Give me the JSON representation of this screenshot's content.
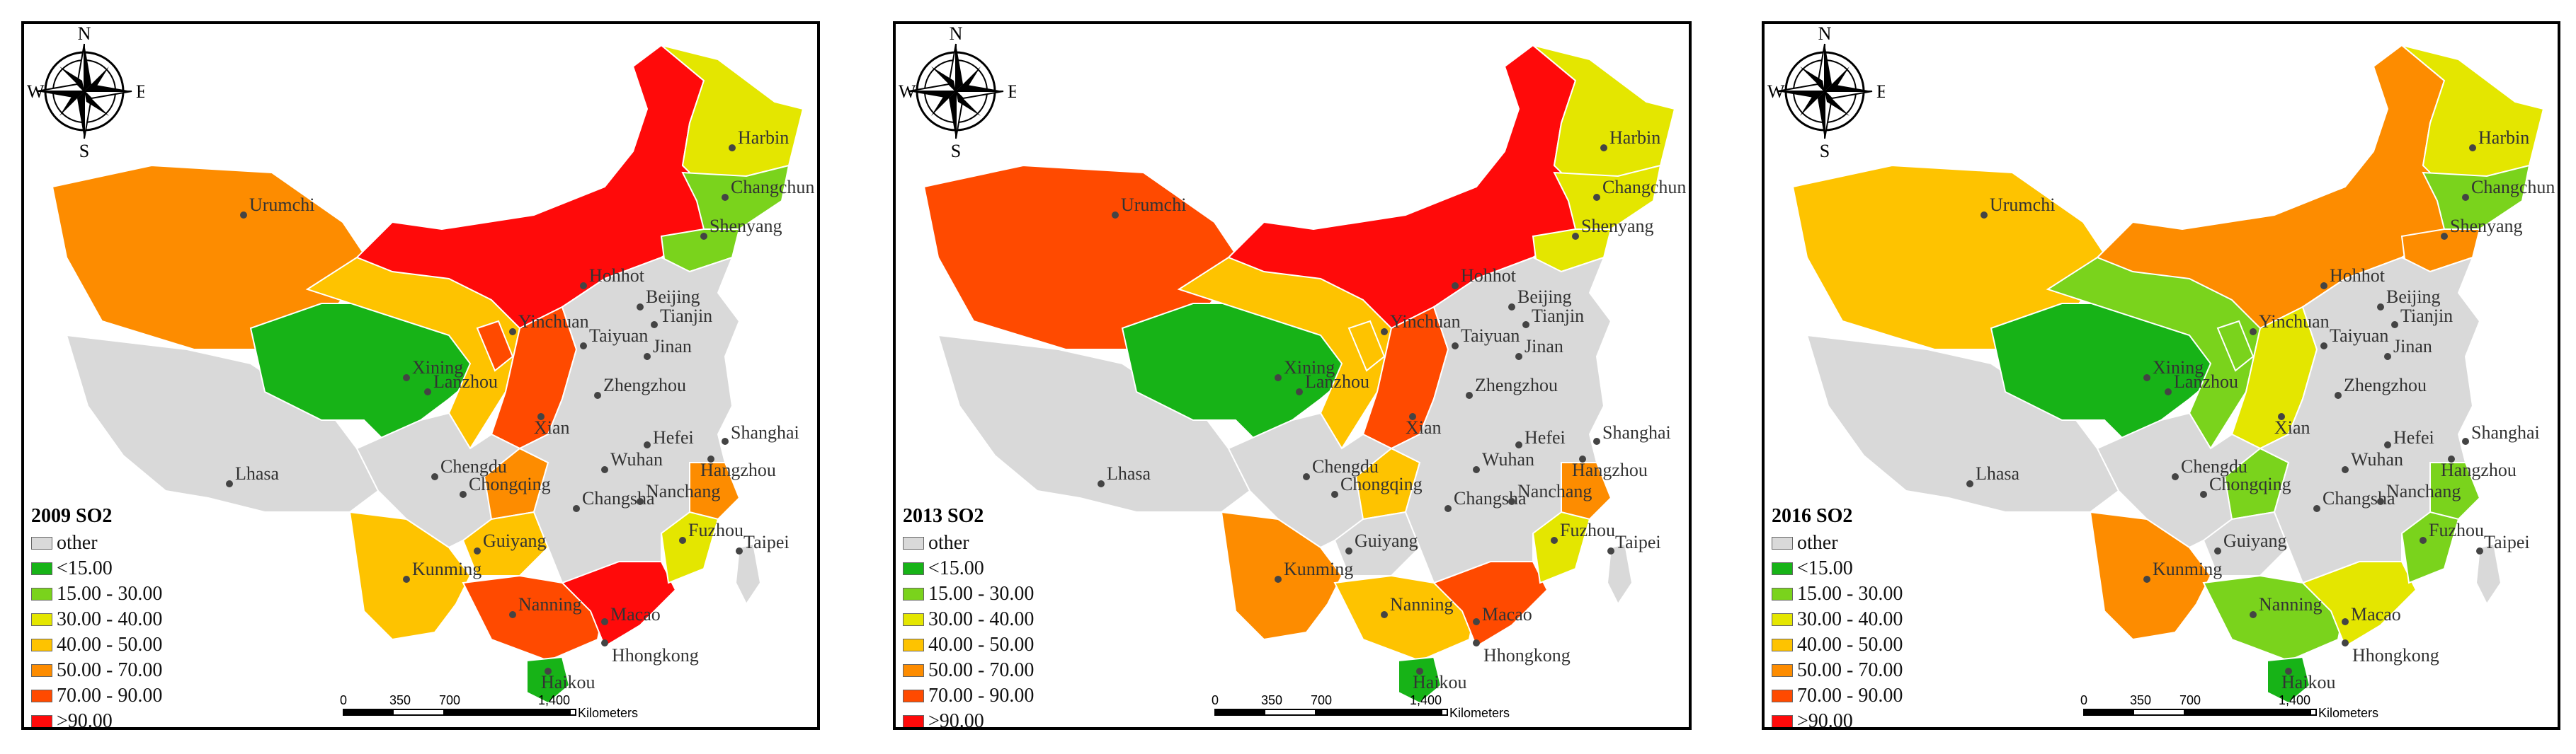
{
  "panels": [
    {
      "title": "2009 SO2",
      "colors": {
        "xinjiang": "#fd8c00",
        "xizang": "#d9d9d9",
        "qinghai": "#17b317",
        "gansu": "#fec300",
        "ningxia": "#ff4a00",
        "inner_mongolia": "#ff0a0a",
        "heilongjiang": "#e4e600",
        "jilin": "#7ad31c",
        "liaoning": "#7ad31c",
        "shaanxi": "#ff4a00",
        "sichuan": "#d9d9d9",
        "chongqing": "#fd8c00",
        "yunnan": "#fec300",
        "guizhou": "#fec300",
        "guangxi": "#ff4a00",
        "guangdong": "#ff0a0a",
        "fujian": "#e4e600",
        "zhejiang": "#fd8c00",
        "hainan": "#17b317",
        "east": "#d9d9d9"
      }
    },
    {
      "title": "2013 SO2",
      "colors": {
        "xinjiang": "#ff4a00",
        "xizang": "#d9d9d9",
        "qinghai": "#17b317",
        "gansu": "#fec300",
        "ningxia": "#fec300",
        "inner_mongolia": "#ff0a0a",
        "heilongjiang": "#e4e600",
        "jilin": "#e4e600",
        "liaoning": "#e4e600",
        "shaanxi": "#ff4a00",
        "sichuan": "#d9d9d9",
        "chongqing": "#fec300",
        "yunnan": "#fd8c00",
        "guizhou": "#d9d9d9",
        "guangxi": "#fec300",
        "guangdong": "#ff4a00",
        "fujian": "#e4e600",
        "zhejiang": "#fd8c00",
        "hainan": "#17b317",
        "east": "#d9d9d9"
      }
    },
    {
      "title": "2016 SO2",
      "colors": {
        "xinjiang": "#fec300",
        "xizang": "#d9d9d9",
        "qinghai": "#17b317",
        "gansu": "#7ad31c",
        "ningxia": "#7ad31c",
        "inner_mongolia": "#fd8c00",
        "heilongjiang": "#e4e600",
        "jilin": "#7ad31c",
        "liaoning": "#fd8c00",
        "shaanxi": "#e4e600",
        "sichuan": "#d9d9d9",
        "chongqing": "#7ad31c",
        "yunnan": "#fd8c00",
        "guizhou": "#d9d9d9",
        "guangxi": "#7ad31c",
        "guangdong": "#e4e600",
        "fujian": "#7ad31c",
        "zhejiang": "#7ad31c",
        "hainan": "#17b317",
        "east": "#d9d9d9"
      }
    }
  ],
  "legend": {
    "items": [
      {
        "label": "other",
        "color": "#d9d9d9"
      },
      {
        "label": "<15.00",
        "color": "#17b317"
      },
      {
        "label": "15.00 - 30.00",
        "color": "#7ad31c"
      },
      {
        "label": "30.00 - 40.00",
        "color": "#e4e600"
      },
      {
        "label": "40.00 - 50.00",
        "color": "#fec300"
      },
      {
        "label": "50.00 - 70.00",
        "color": "#fd8c00"
      },
      {
        "label": "70.00 - 90.00",
        "color": "#ff4a00"
      },
      {
        "label": ">90.00",
        "color": "#ff0a0a"
      }
    ]
  },
  "scale": {
    "ticks": [
      "0",
      "350",
      "700",
      "1,400"
    ],
    "unit": "Kilometers"
  },
  "compass": {
    "n": "N",
    "s": "S",
    "e": "E",
    "w": "W"
  },
  "cities": [
    {
      "name": "Harbin"
    },
    {
      "name": "Changchun"
    },
    {
      "name": "Shenyang"
    },
    {
      "name": "Urumchi"
    },
    {
      "name": "Hohhot"
    },
    {
      "name": "Beijing"
    },
    {
      "name": "Tianjin"
    },
    {
      "name": "Yinchuan"
    },
    {
      "name": "Taiyuan"
    },
    {
      "name": "Jinan"
    },
    {
      "name": "Xining"
    },
    {
      "name": "Lanzhou"
    },
    {
      "name": "Zhengzhou"
    },
    {
      "name": "Xian"
    },
    {
      "name": "Shanghai"
    },
    {
      "name": "Hefei"
    },
    {
      "name": "Hangzhou"
    },
    {
      "name": "Lhasa"
    },
    {
      "name": "Chengdu"
    },
    {
      "name": "Wuhan"
    },
    {
      "name": "Chongqing"
    },
    {
      "name": "Changsha"
    },
    {
      "name": "Nanchang"
    },
    {
      "name": "Fuzhou"
    },
    {
      "name": "Taipei"
    },
    {
      "name": "Guiyang"
    },
    {
      "name": "Kunming"
    },
    {
      "name": "Nanning"
    },
    {
      "name": "Macao"
    },
    {
      "name": "Hhongkong"
    },
    {
      "name": "Haikou"
    }
  ]
}
